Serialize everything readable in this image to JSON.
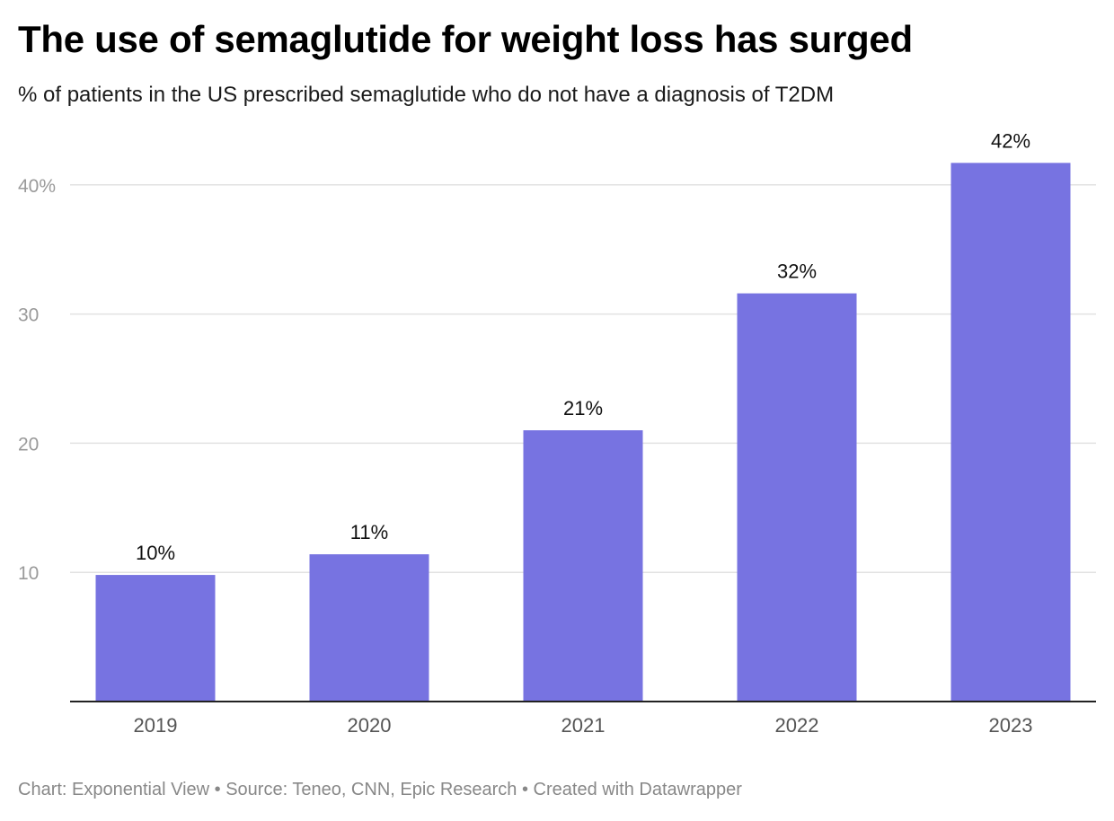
{
  "title": "The use of semaglutide for weight loss has surged",
  "subtitle": "% of patients in the US prescribed semaglutide who do not have a diagnosis of T2DM",
  "footer": "Chart: Exponential View • Source: Teneo, CNN, Epic Research • Created with Datawrapper",
  "colors": {
    "bar": "#7773e1",
    "grid": "#e2e2e2",
    "axis": "#222222"
  },
  "chart_data": {
    "type": "bar",
    "title": "The use of semaglutide for weight loss has surged",
    "subtitle": "% of patients in the US prescribed semaglutide who do not have a diagnosis of T2DM",
    "xlabel": "",
    "ylabel": "",
    "categories": [
      "2019",
      "2020",
      "2021",
      "2022",
      "2023"
    ],
    "values": [
      9.8,
      11.4,
      21,
      31.6,
      41.7
    ],
    "data_labels": [
      "10%",
      "11%",
      "21%",
      "32%",
      "42%"
    ],
    "ylim": [
      0,
      40
    ],
    "yticks": [
      10,
      20,
      30,
      40
    ],
    "ytick_labels": [
      "10",
      "20",
      "30",
      "40%"
    ],
    "grid": true,
    "legend": "none"
  }
}
